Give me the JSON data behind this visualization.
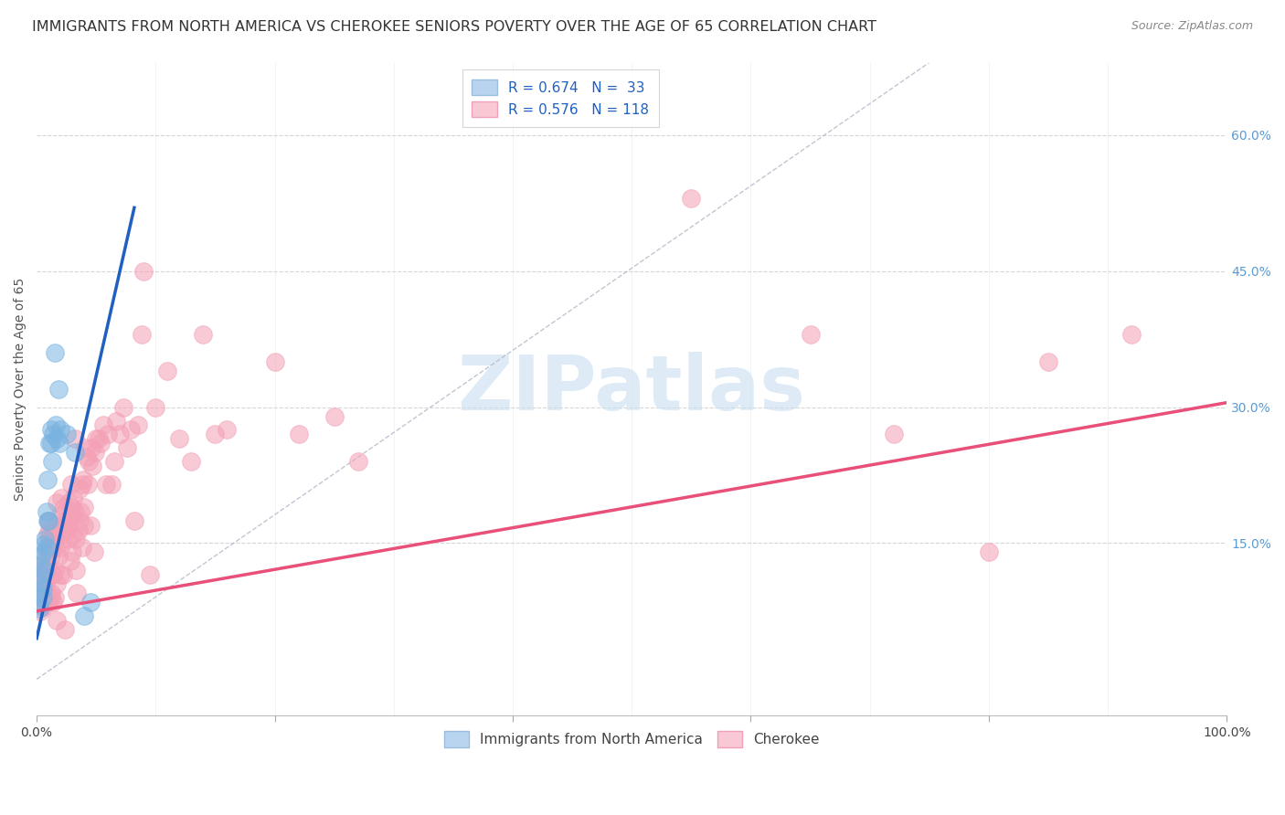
{
  "title": "IMMIGRANTS FROM NORTH AMERICA VS CHEROKEE SENIORS POVERTY OVER THE AGE OF 65 CORRELATION CHART",
  "source": "Source: ZipAtlas.com",
  "ylabel": "Seniors Poverty Over the Age of 65",
  "ytick_vals": [
    0.0,
    0.15,
    0.3,
    0.45,
    0.6
  ],
  "ytick_labels": [
    "",
    "15.0%",
    "30.0%",
    "45.0%",
    "60.0%"
  ],
  "xtick_vals": [
    0.0,
    0.2,
    0.4,
    0.6,
    0.8,
    1.0
  ],
  "xtick_labels": [
    "0.0%",
    "",
    "",
    "",
    "",
    "100.0%"
  ],
  "xlim": [
    0.0,
    1.0
  ],
  "ylim": [
    -0.04,
    0.68
  ],
  "legend1_label": "R = 0.674   N =  33",
  "legend2_label": "R = 0.576   N = 118",
  "blue_scatter_color": "#7ab3e0",
  "pink_scatter_color": "#f4a0b5",
  "blue_line_color": "#2060c0",
  "pink_line_color": "#e8507a",
  "diag_color": "#b0b8c8",
  "watermark": "ZIPatlas",
  "watermark_color": "#c8dff0",
  "grid_color": "#cccccc",
  "bg_color": "#ffffff",
  "blue_line": [
    [
      0.0,
      0.045
    ],
    [
      0.082,
      0.52
    ]
  ],
  "pink_line": [
    [
      0.0,
      0.075
    ],
    [
      1.0,
      0.305
    ]
  ],
  "diag_line": [
    [
      0.0,
      0.0
    ],
    [
      0.75,
      0.68
    ]
  ],
  "blue_scatter": [
    [
      0.001,
      0.095
    ],
    [
      0.002,
      0.082
    ],
    [
      0.002,
      0.078
    ],
    [
      0.003,
      0.105
    ],
    [
      0.003,
      0.115
    ],
    [
      0.004,
      0.125
    ],
    [
      0.004,
      0.135
    ],
    [
      0.005,
      0.1
    ],
    [
      0.005,
      0.09
    ],
    [
      0.006,
      0.148
    ],
    [
      0.006,
      0.14
    ],
    [
      0.007,
      0.12
    ],
    [
      0.007,
      0.155
    ],
    [
      0.008,
      0.145
    ],
    [
      0.008,
      0.185
    ],
    [
      0.009,
      0.22
    ],
    [
      0.009,
      0.175
    ],
    [
      0.01,
      0.175
    ],
    [
      0.011,
      0.26
    ],
    [
      0.012,
      0.275
    ],
    [
      0.012,
      0.26
    ],
    [
      0.013,
      0.24
    ],
    [
      0.014,
      0.27
    ],
    [
      0.015,
      0.36
    ],
    [
      0.016,
      0.28
    ],
    [
      0.017,
      0.265
    ],
    [
      0.018,
      0.32
    ],
    [
      0.019,
      0.26
    ],
    [
      0.02,
      0.275
    ],
    [
      0.025,
      0.27
    ],
    [
      0.032,
      0.25
    ],
    [
      0.04,
      0.07
    ],
    [
      0.045,
      0.085
    ]
  ],
  "pink_scatter": [
    [
      0.001,
      0.095
    ],
    [
      0.002,
      0.09
    ],
    [
      0.002,
      0.085
    ],
    [
      0.003,
      0.075
    ],
    [
      0.003,
      0.12
    ],
    [
      0.004,
      0.105
    ],
    [
      0.004,
      0.08
    ],
    [
      0.005,
      0.115
    ],
    [
      0.005,
      0.095
    ],
    [
      0.005,
      0.125
    ],
    [
      0.006,
      0.08
    ],
    [
      0.006,
      0.095
    ],
    [
      0.007,
      0.105
    ],
    [
      0.007,
      0.13
    ],
    [
      0.007,
      0.115
    ],
    [
      0.008,
      0.085
    ],
    [
      0.008,
      0.1
    ],
    [
      0.008,
      0.14
    ],
    [
      0.009,
      0.16
    ],
    [
      0.009,
      0.09
    ],
    [
      0.01,
      0.145
    ],
    [
      0.01,
      0.09
    ],
    [
      0.01,
      0.175
    ],
    [
      0.01,
      0.085
    ],
    [
      0.011,
      0.165
    ],
    [
      0.011,
      0.12
    ],
    [
      0.011,
      0.155
    ],
    [
      0.012,
      0.09
    ],
    [
      0.012,
      0.095
    ],
    [
      0.012,
      0.135
    ],
    [
      0.013,
      0.115
    ],
    [
      0.013,
      0.16
    ],
    [
      0.014,
      0.115
    ],
    [
      0.014,
      0.145
    ],
    [
      0.014,
      0.085
    ],
    [
      0.015,
      0.155
    ],
    [
      0.015,
      0.12
    ],
    [
      0.015,
      0.09
    ],
    [
      0.016,
      0.145
    ],
    [
      0.016,
      0.16
    ],
    [
      0.017,
      0.195
    ],
    [
      0.017,
      0.105
    ],
    [
      0.017,
      0.065
    ],
    [
      0.018,
      0.135
    ],
    [
      0.018,
      0.17
    ],
    [
      0.019,
      0.18
    ],
    [
      0.019,
      0.17
    ],
    [
      0.02,
      0.145
    ],
    [
      0.02,
      0.115
    ],
    [
      0.021,
      0.16
    ],
    [
      0.021,
      0.2
    ],
    [
      0.022,
      0.175
    ],
    [
      0.022,
      0.115
    ],
    [
      0.023,
      0.19
    ],
    [
      0.024,
      0.055
    ],
    [
      0.025,
      0.17
    ],
    [
      0.025,
      0.165
    ],
    [
      0.026,
      0.155
    ],
    [
      0.027,
      0.195
    ],
    [
      0.027,
      0.175
    ],
    [
      0.028,
      0.13
    ],
    [
      0.028,
      0.18
    ],
    [
      0.029,
      0.215
    ],
    [
      0.029,
      0.19
    ],
    [
      0.03,
      0.14
    ],
    [
      0.03,
      0.18
    ],
    [
      0.031,
      0.16
    ],
    [
      0.031,
      0.2
    ],
    [
      0.032,
      0.265
    ],
    [
      0.032,
      0.185
    ],
    [
      0.033,
      0.155
    ],
    [
      0.033,
      0.12
    ],
    [
      0.034,
      0.095
    ],
    [
      0.035,
      0.165
    ],
    [
      0.036,
      0.175
    ],
    [
      0.036,
      0.21
    ],
    [
      0.037,
      0.185
    ],
    [
      0.038,
      0.145
    ],
    [
      0.038,
      0.215
    ],
    [
      0.039,
      0.22
    ],
    [
      0.04,
      0.19
    ],
    [
      0.04,
      0.17
    ],
    [
      0.041,
      0.255
    ],
    [
      0.042,
      0.245
    ],
    [
      0.043,
      0.215
    ],
    [
      0.044,
      0.24
    ],
    [
      0.045,
      0.17
    ],
    [
      0.046,
      0.255
    ],
    [
      0.047,
      0.235
    ],
    [
      0.048,
      0.14
    ],
    [
      0.049,
      0.25
    ],
    [
      0.05,
      0.265
    ],
    [
      0.052,
      0.265
    ],
    [
      0.054,
      0.26
    ],
    [
      0.056,
      0.28
    ],
    [
      0.058,
      0.215
    ],
    [
      0.06,
      0.27
    ],
    [
      0.063,
      0.215
    ],
    [
      0.065,
      0.24
    ],
    [
      0.067,
      0.285
    ],
    [
      0.07,
      0.27
    ],
    [
      0.073,
      0.3
    ],
    [
      0.076,
      0.255
    ],
    [
      0.079,
      0.275
    ],
    [
      0.082,
      0.175
    ],
    [
      0.085,
      0.28
    ],
    [
      0.088,
      0.38
    ],
    [
      0.09,
      0.45
    ],
    [
      0.095,
      0.115
    ],
    [
      0.1,
      0.3
    ],
    [
      0.11,
      0.34
    ],
    [
      0.12,
      0.265
    ],
    [
      0.13,
      0.24
    ],
    [
      0.14,
      0.38
    ],
    [
      0.15,
      0.27
    ],
    [
      0.16,
      0.275
    ],
    [
      0.2,
      0.35
    ],
    [
      0.22,
      0.27
    ],
    [
      0.25,
      0.29
    ],
    [
      0.27,
      0.24
    ],
    [
      0.55,
      0.53
    ],
    [
      0.65,
      0.38
    ],
    [
      0.72,
      0.27
    ],
    [
      0.8,
      0.14
    ],
    [
      0.85,
      0.35
    ],
    [
      0.92,
      0.38
    ]
  ]
}
